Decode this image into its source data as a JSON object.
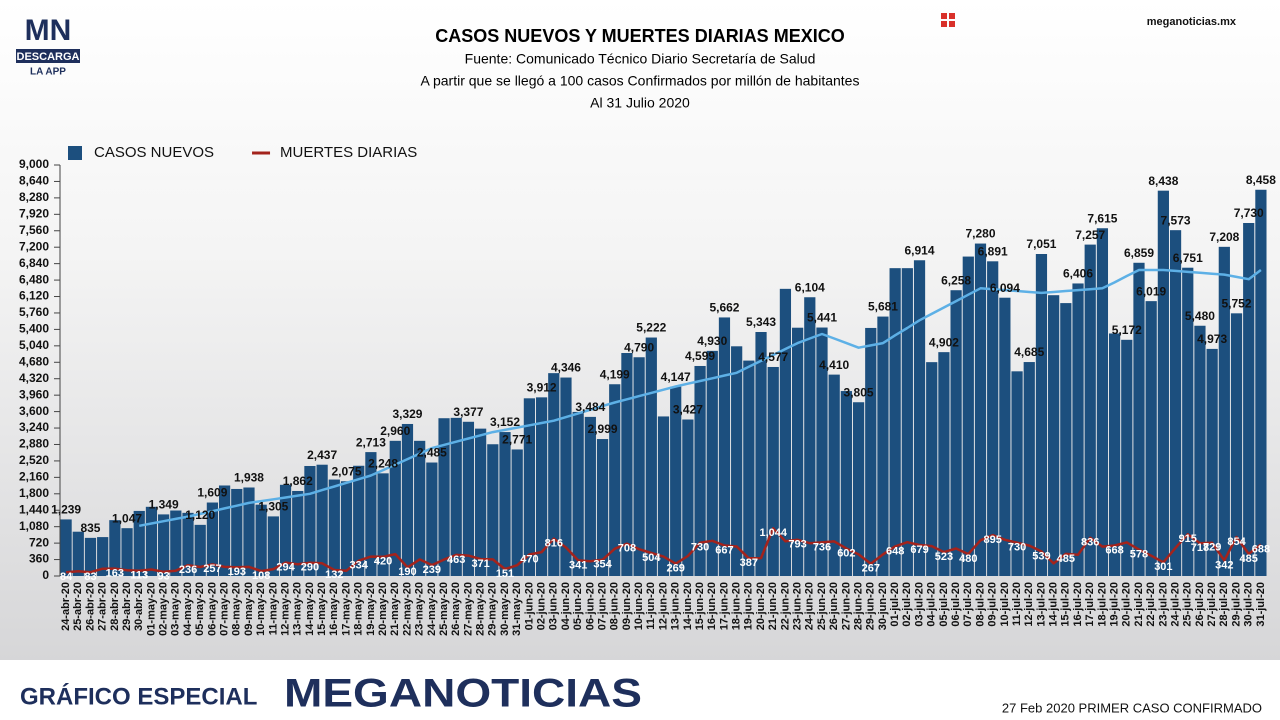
{
  "branding": {
    "logo": "MN",
    "logo_sub": "DESCARGA",
    "logo_app": "LA APP",
    "site": "meganoticias.mx",
    "footer_left": "GRÁFICO ESPECIAL",
    "footer_brand": "MEGANOTICIAS",
    "footer_note": "27 Feb 2020 PRIMER CASO CONFIRMADO"
  },
  "chart_data": {
    "type": "bar",
    "title": "CASOS NUEVOS Y MUERTES DIARIAS MEXICO",
    "subtitle": [
      "Fuente: Comunicado Técnico Diario Secretaría de Salud",
      "A partir que se llegó a 100 casos Confirmados por millón de habitantes",
      "Al 31 Julio 2020"
    ],
    "categories": [
      "24-abr-20",
      "25-abr-20",
      "26-abr-20",
      "27-abr-20",
      "28-abr-20",
      "29-abr-20",
      "30-abr-20",
      "01-may-20",
      "02-may-20",
      "03-may-20",
      "04-may-20",
      "05-may-20",
      "06-may-20",
      "07-may-20",
      "08-may-20",
      "09-may-20",
      "10-may-20",
      "11-may-20",
      "12-may-20",
      "13-may-20",
      "14-may-20",
      "15-may-20",
      "16-may-20",
      "17-may-20",
      "18-may-20",
      "19-may-20",
      "20-may-20",
      "21-may-20",
      "22-may-20",
      "23-may-20",
      "24-may-20",
      "25-may-20",
      "26-may-20",
      "27-may-20",
      "28-may-20",
      "29-may-20",
      "30-may-20",
      "31-may-20",
      "01-jun-20",
      "02-jun-20",
      "03-jun-20",
      "04-jun-20",
      "05-jun-20",
      "06-jun-20",
      "07-jun-20",
      "08-jun-20",
      "09-jun-20",
      "10-jun-20",
      "11-jun-20",
      "12-jun-20",
      "13-jun-20",
      "14-jun-20",
      "15-jun-20",
      "16-jun-20",
      "17-jun-20",
      "18-jun-20",
      "19-jun-20",
      "20-jun-20",
      "21-jun-20",
      "22-jun-20",
      "23-jun-20",
      "24-jun-20",
      "25-jun-20",
      "26-jun-20",
      "27-jun-20",
      "28-jun-20",
      "29-jun-20",
      "30-jun-20",
      "01-jul-20",
      "02-jul-20",
      "03-jul-20",
      "04-jul-20",
      "05-jul-20",
      "06-jul-20",
      "07-jul-20",
      "08-jul-20",
      "09-jul-20",
      "10-jul-20",
      "11-jul-20",
      "12-jul-20",
      "13-jul-20",
      "14-jul-20",
      "15-jul-20",
      "16-jul-20",
      "17-jul-20",
      "18-jul-20",
      "19-jul-20",
      "20-jul-20",
      "21-jul-20",
      "22-jul-20",
      "23-jul-20",
      "24-jul-20",
      "25-jul-20",
      "26-jul-20",
      "27-jul-20",
      "28-jul-20",
      "29-jul-20",
      "30-jul-20",
      "31-jul-20"
    ],
    "series": [
      {
        "name": "CASOS NUEVOS",
        "type": "bar",
        "color": "#1c4f7e",
        "values": [
          1239,
          970,
          835,
          852,
          1223,
          1047,
          1425,
          1515,
          1349,
          1434,
          1383,
          1120,
          1609,
          1982,
          1906,
          1938,
          1562,
          1305,
          1997,
          1862,
          2409,
          2437,
          2112,
          2075,
          2414,
          2713,
          2248,
          2960,
          3329,
          2960,
          2485,
          3455,
          3463,
          3377,
          3227,
          2885,
          3152,
          2771,
          3891,
          3912,
          4442,
          4346,
          3593,
          3484,
          2999,
          4199,
          4883,
          4790,
          5222,
          3494,
          4147,
          3427,
          4599,
          4930,
          5662,
          5030,
          4717,
          5343,
          4577,
          6288,
          5437,
          6104,
          5441,
          4410,
          4050,
          3805,
          5432,
          5681,
          6741,
          6741,
          6914,
          4683,
          4902,
          6258,
          6995,
          7280,
          6891,
          6094,
          4482,
          4685,
          7051,
          6149,
          5976,
          6406,
          7257,
          7615,
          5311,
          5172,
          6859,
          6019,
          8438,
          7573,
          6751,
          5480,
          4973,
          7208,
          5752,
          7730,
          8458
        ],
        "value_labels": [
          "1,239",
          null,
          "835",
          null,
          null,
          "1,047",
          null,
          null,
          "1,349",
          null,
          null,
          "1,120",
          "1,609",
          null,
          null,
          "1,938",
          null,
          "1,305",
          null,
          "1,862",
          null,
          "2,437",
          null,
          "2,075",
          null,
          "2,713",
          "2,248",
          "2,960",
          "3,329",
          null,
          "2,485",
          null,
          null,
          "3,377",
          null,
          null,
          "3,152",
          "2,771",
          null,
          "3,912",
          null,
          "4,346",
          null,
          "3,484",
          "2,999",
          "4,199",
          null,
          "4,790",
          "5,222",
          null,
          "4,147",
          "3,427",
          "4,599",
          "4,930",
          "5,662",
          null,
          null,
          "5,343",
          "4,577",
          null,
          null,
          "6,104",
          "5,441",
          "4,410",
          null,
          "3,805",
          null,
          "5,681",
          null,
          null,
          "6,914",
          null,
          "4,902",
          "6,258",
          null,
          "7,280",
          "6,891",
          "6,094",
          null,
          "4,685",
          "7,051",
          null,
          null,
          "6,406",
          "7,257",
          "7,615",
          null,
          "5,172",
          "6,859",
          "6,019",
          "8,438",
          "7,573",
          "6,751",
          "5,480",
          "4,973",
          "7,208",
          "5,752",
          "7,730",
          "8,458"
        ]
      },
      {
        "name": "MUERTES DIARIAS",
        "type": "line",
        "color": "#a3231c",
        "values": [
          84,
          103,
          83,
          159,
          163,
          125,
          113,
          142,
          93,
          117,
          236,
          197,
          257,
          199,
          193,
          199,
          108,
          151,
          294,
          257,
          290,
          278,
          132,
          117,
          334,
          424,
          420,
          479,
          190,
          364,
          239,
          359,
          463,
          447,
          371,
          364,
          151,
          237,
          470,
          524,
          816,
          625,
          341,
          324,
          354,
          596,
          708,
          587,
          504,
          424,
          269,
          439,
          730,
          770,
          667,
          647,
          387,
          392,
          1044,
          759,
          793,
          719,
          736,
          757,
          602,
          473,
          267,
          473,
          648,
          741,
          679,
          654,
          523,
          602,
          480,
          782,
          895,
          792,
          730,
          665,
          539,
          276,
          485,
          465,
          836,
          644,
          668,
          736,
          578,
          444,
          301,
          617,
          915,
          718,
          729,
          342,
          854,
          485,
          688
        ],
        "value_labels": [
          84,
          null,
          83,
          null,
          163,
          null,
          113,
          null,
          93,
          null,
          236,
          null,
          257,
          null,
          193,
          null,
          108,
          null,
          294,
          null,
          290,
          null,
          132,
          null,
          334,
          null,
          420,
          null,
          190,
          null,
          239,
          null,
          463,
          null,
          371,
          null,
          151,
          null,
          470,
          null,
          816,
          null,
          341,
          null,
          354,
          null,
          708,
          null,
          504,
          null,
          269,
          null,
          730,
          null,
          667,
          null,
          387,
          null,
          "1,044",
          null,
          793,
          null,
          736,
          null,
          602,
          null,
          267,
          null,
          648,
          null,
          679,
          null,
          523,
          null,
          480,
          null,
          895,
          null,
          730,
          null,
          539,
          null,
          485,
          null,
          836,
          null,
          668,
          null,
          578,
          null,
          301,
          null,
          915,
          718,
          729,
          342,
          854,
          485,
          688
        ]
      },
      {
        "type": "line",
        "color": "#5db0e6",
        "values": [
          null,
          null,
          null,
          null,
          null,
          null,
          1100,
          1150,
          1200,
          1250,
          1300,
          1360,
          1420,
          1480,
          1540,
          1600,
          1640,
          1680,
          1720,
          1760,
          1800,
          1880,
          1960,
          2040,
          2120,
          2200,
          2320,
          2440,
          2560,
          2680,
          2800,
          2870,
          2940,
          3010,
          3080,
          3150,
          3200,
          3250,
          3300,
          3350,
          3400,
          3480,
          3560,
          3640,
          3720,
          3800,
          3870,
          3940,
          4010,
          4080,
          4150,
          4210,
          4270,
          4330,
          4390,
          4450,
          4580,
          4710,
          4840,
          4970,
          5100,
          5200,
          5300,
          5200,
          5100,
          5000,
          5050,
          5100,
          5270,
          5430,
          5600,
          5740,
          5880,
          6020,
          6160,
          6300,
          6280,
          6260,
          6240,
          6220,
          6200,
          6220,
          6240,
          6260,
          6280,
          6300,
          6430,
          6570,
          6700,
          6700,
          6700,
          6680,
          6660,
          6640,
          6620,
          6600,
          6550,
          6500,
          6700
        ]
      }
    ],
    "ylim": [
      0,
      9000
    ],
    "yticks": [
      0,
      360,
      720,
      {
        "value": 1080,
        "label": "1,080"
      },
      {
        "value": 1440,
        "label": "1,440"
      },
      {
        "value": 1800,
        "label": "1,800"
      },
      {
        "value": 2160,
        "label": "2,160"
      },
      {
        "value": 2520,
        "label": "2,520"
      },
      {
        "value": 2880,
        "label": "2,880"
      },
      {
        "value": 3240,
        "label": "3,240"
      },
      {
        "value": 3600,
        "label": "3,600"
      },
      {
        "value": 3960,
        "label": "3,960"
      },
      {
        "value": 4320,
        "label": "4,320"
      },
      {
        "value": 4680,
        "label": "4,680"
      },
      {
        "value": 5040,
        "label": "5,040"
      },
      {
        "value": 5400,
        "label": "5,400"
      },
      {
        "value": 5760,
        "label": "5,760"
      },
      {
        "value": 6120,
        "label": "6,120"
      },
      {
        "value": 6480,
        "label": "6,480"
      },
      {
        "value": 6840,
        "label": "6,840"
      },
      {
        "value": 7200,
        "label": "7,200"
      },
      {
        "value": 7560,
        "label": "7,560"
      },
      {
        "value": 7920,
        "label": "7,920"
      },
      {
        "value": 8280,
        "label": "8,280"
      },
      {
        "value": 8640,
        "label": "8,640"
      },
      {
        "value": 9000,
        "label": "9,000"
      }
    ],
    "grid": false,
    "legend": "top-left"
  }
}
